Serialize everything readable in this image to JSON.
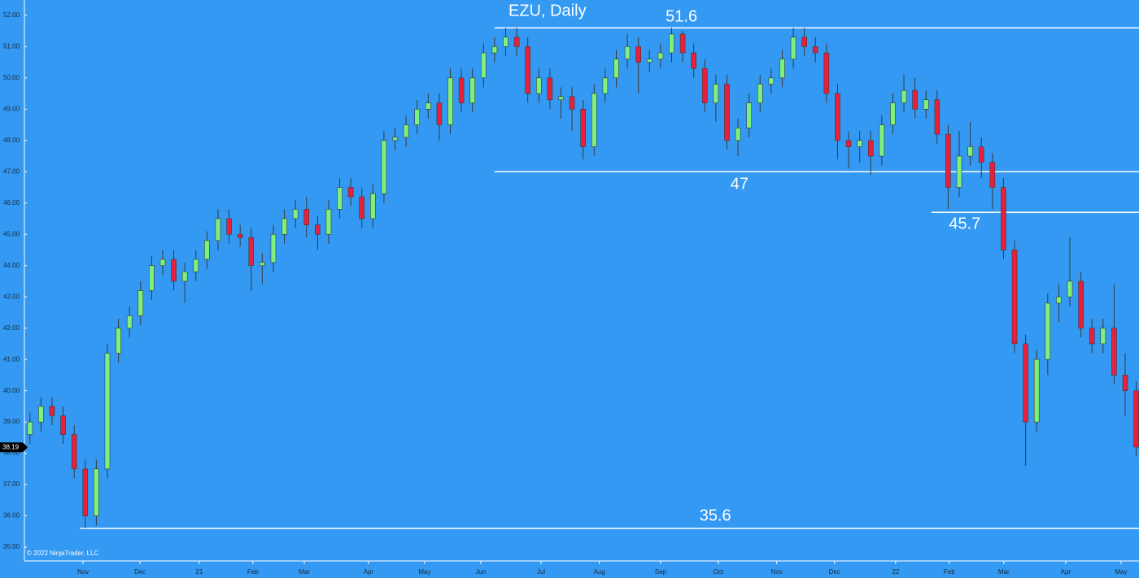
{
  "chart_data": {
    "type": "candlestick",
    "title": "EZU, Daily",
    "footnote": "© 2022 NinjaTrader, LLC",
    "last_price": 38.19,
    "up_color": "#7ef07e",
    "down_color": "#e8203c",
    "wick_color": "#3a3a3a",
    "xlim": [
      0,
      403
    ],
    "ylim": [
      34.56,
      52.49
    ],
    "yticks": [
      {
        "value": 35,
        "label": "35.00"
      },
      {
        "value": 36,
        "label": "36.00"
      },
      {
        "value": 37,
        "label": "37.00"
      },
      {
        "value": 38,
        "label": "38.00"
      },
      {
        "value": 39,
        "label": "39.00"
      },
      {
        "value": 40,
        "label": "40.00"
      },
      {
        "value": 41,
        "label": "41.00"
      },
      {
        "value": 42,
        "label": "42.00"
      },
      {
        "value": 43,
        "label": "43.00"
      },
      {
        "value": 44,
        "label": "44.00"
      },
      {
        "value": 45,
        "label": "45.00"
      },
      {
        "value": 46,
        "label": "46.00"
      },
      {
        "value": 47,
        "label": "47.00"
      },
      {
        "value": 48,
        "label": "48.00"
      },
      {
        "value": 49,
        "label": "49.00"
      },
      {
        "value": 50,
        "label": "50.00"
      },
      {
        "value": 51,
        "label": "51.00"
      },
      {
        "value": 52,
        "label": "52.00"
      }
    ],
    "xticks": [
      {
        "value": 21.2,
        "label": "Nov"
      },
      {
        "value": 41.8,
        "label": "Dec"
      },
      {
        "value": 63.2,
        "label": "21"
      },
      {
        "value": 82.6,
        "label": "Feb"
      },
      {
        "value": 101.2,
        "label": "Mar"
      },
      {
        "value": 124.4,
        "label": "Apr"
      },
      {
        "value": 144.7,
        "label": "May"
      },
      {
        "value": 165,
        "label": "Jun"
      },
      {
        "value": 186.8,
        "label": "Jul"
      },
      {
        "value": 207.9,
        "label": "Aug"
      },
      {
        "value": 230,
        "label": "Sep"
      },
      {
        "value": 250.9,
        "label": "Oct"
      },
      {
        "value": 272,
        "label": "Nov"
      },
      {
        "value": 292.9,
        "label": "Dec"
      },
      {
        "value": 315,
        "label": "22"
      },
      {
        "value": 334.4,
        "label": "Feb"
      },
      {
        "value": 354.1,
        "label": "Mar"
      },
      {
        "value": 376.5,
        "label": "Apr"
      },
      {
        "value": 396.5,
        "label": "May"
      }
    ],
    "levels": [
      {
        "value": 51.6,
        "start": 170
      },
      {
        "value": 47,
        "start": 170
      },
      {
        "value": 45.7,
        "start": 328
      },
      {
        "value": 35.6,
        "start": 20
      }
    ],
    "x": [
      2,
      6,
      10,
      14,
      18,
      22,
      26,
      30,
      34,
      38,
      42,
      46,
      50,
      54,
      58,
      62,
      66,
      70,
      74,
      78,
      82,
      86,
      90,
      94,
      98,
      102,
      106,
      110,
      114,
      118,
      122,
      126,
      130,
      134,
      138,
      142,
      146,
      150,
      154,
      158,
      162,
      166,
      170,
      174,
      178,
      182,
      186,
      190,
      194,
      198,
      202,
      206,
      210,
      214,
      218,
      222,
      226,
      230,
      234,
      238,
      242,
      246,
      250,
      254,
      258,
      262,
      266,
      270,
      274,
      278,
      282,
      286,
      290,
      294,
      298,
      302,
      306,
      310,
      314,
      318,
      322,
      326,
      330,
      334,
      338,
      342,
      346,
      350,
      354,
      358,
      362,
      366,
      370,
      374,
      378,
      382,
      386,
      390,
      394,
      398,
      402
    ],
    "open": [
      38.6,
      39.0,
      39.5,
      39.2,
      38.6,
      37.5,
      36.0,
      37.5,
      41.2,
      42.0,
      42.4,
      43.2,
      44.0,
      44.2,
      43.5,
      43.8,
      44.2,
      44.8,
      45.5,
      45.0,
      44.9,
      44.0,
      44.1,
      45.0,
      45.5,
      45.8,
      45.3,
      45.0,
      45.8,
      46.5,
      46.2,
      45.5,
      46.3,
      48.0,
      48.1,
      48.5,
      49.0,
      49.2,
      48.5,
      50.0,
      49.2,
      50.0,
      50.8,
      51.0,
      51.3,
      51.0,
      49.5,
      50.0,
      49.3,
      49.4,
      49.0,
      47.8,
      49.5,
      50.0,
      50.6,
      51.0,
      50.5,
      50.6,
      50.8,
      51.4,
      50.8,
      50.3,
      49.2,
      49.8,
      48.0,
      48.4,
      49.2,
      49.8,
      50.0,
      50.6,
      51.3,
      51.0,
      50.8,
      49.5,
      48.0,
      47.8,
      48.0,
      47.5,
      48.5,
      49.2,
      49.6,
      49.0,
      49.3,
      48.2,
      46.5,
      47.5,
      47.8,
      47.3,
      46.5,
      44.5,
      41.5,
      39.0,
      41.0,
      42.8,
      43.0,
      43.5,
      42.0,
      41.5,
      42.0,
      40.5,
      40.0
    ],
    "high": [
      39.3,
      39.8,
      39.8,
      39.5,
      38.9,
      37.8,
      37.8,
      41.5,
      42.3,
      42.7,
      43.5,
      44.3,
      44.5,
      44.5,
      44.1,
      44.5,
      45.1,
      45.8,
      45.8,
      45.3,
      45.2,
      44.4,
      45.3,
      45.8,
      46.1,
      46.2,
      45.6,
      46.1,
      46.8,
      46.8,
      46.5,
      46.6,
      48.3,
      48.4,
      48.8,
      49.3,
      49.5,
      49.5,
      50.3,
      50.3,
      50.3,
      51.1,
      51.3,
      51.6,
      51.6,
      51.3,
      50.3,
      50.3,
      49.7,
      49.7,
      49.3,
      49.8,
      50.3,
      50.9,
      51.4,
      51.3,
      50.9,
      51.1,
      51.6,
      51.5,
      51.1,
      50.6,
      50.1,
      50.1,
      48.7,
      49.5,
      50.1,
      50.3,
      50.9,
      51.6,
      51.6,
      51.3,
      51.1,
      49.8,
      48.3,
      48.3,
      48.3,
      48.8,
      49.5,
      50.1,
      50.0,
      49.6,
      49.6,
      48.5,
      48.3,
      48.6,
      48.1,
      47.6,
      46.8,
      44.8,
      41.8,
      41.3,
      43.1,
      43.4,
      44.9,
      43.8,
      42.3,
      42.3,
      43.4,
      41.2,
      40.3
    ],
    "low": [
      38.3,
      38.7,
      38.9,
      38.3,
      37.2,
      35.6,
      35.7,
      37.2,
      40.9,
      41.7,
      42.1,
      42.9,
      43.7,
      43.2,
      42.8,
      43.5,
      43.9,
      44.5,
      44.7,
      44.6,
      43.2,
      43.4,
      43.8,
      44.7,
      45.2,
      44.9,
      44.5,
      44.7,
      45.5,
      45.9,
      45.2,
      45.2,
      46.0,
      47.7,
      47.8,
      48.2,
      48.7,
      48.0,
      48.2,
      48.9,
      48.9,
      49.7,
      50.5,
      50.7,
      50.7,
      49.2,
      49.2,
      49.0,
      48.7,
      48.3,
      47.4,
      47.5,
      49.2,
      49.7,
      50.3,
      49.5,
      50.2,
      50.3,
      50.5,
      50.5,
      50.0,
      48.9,
      48.6,
      47.7,
      47.5,
      48.1,
      48.9,
      49.5,
      49.7,
      50.3,
      50.7,
      50.5,
      49.2,
      47.4,
      47.1,
      47.3,
      46.9,
      47.2,
      48.2,
      48.9,
      48.7,
      48.7,
      47.9,
      45.8,
      46.2,
      47.2,
      46.8,
      45.8,
      44.2,
      41.2,
      37.6,
      38.7,
      40.5,
      42.2,
      42.7,
      41.7,
      41.2,
      41.2,
      40.2,
      39.2,
      37.9
    ],
    "close": [
      39.0,
      39.5,
      39.2,
      38.6,
      37.5,
      36.0,
      37.5,
      41.2,
      42.0,
      42.4,
      43.2,
      44.0,
      44.2,
      43.5,
      43.8,
      44.2,
      44.8,
      45.5,
      45.0,
      44.9,
      44.0,
      44.1,
      45.0,
      45.5,
      45.8,
      45.3,
      45.0,
      45.8,
      46.5,
      46.2,
      45.5,
      46.3,
      48.0,
      48.1,
      48.5,
      49.0,
      49.2,
      48.5,
      50.0,
      49.2,
      50.0,
      50.8,
      51.0,
      51.3,
      51.0,
      49.5,
      50.0,
      49.3,
      49.4,
      49.0,
      47.8,
      49.5,
      50.0,
      50.6,
      51.0,
      50.5,
      50.6,
      50.8,
      51.4,
      50.8,
      50.3,
      49.2,
      49.8,
      48.0,
      48.4,
      49.2,
      49.8,
      50.0,
      50.6,
      51.3,
      51.0,
      50.8,
      49.5,
      48.0,
      47.8,
      48.0,
      47.5,
      48.5,
      49.2,
      49.6,
      49.0,
      49.3,
      48.2,
      46.5,
      47.5,
      47.8,
      47.3,
      46.5,
      44.5,
      41.5,
      39.0,
      41.0,
      42.8,
      43.0,
      43.5,
      42.0,
      41.5,
      42.0,
      40.5,
      40.0,
      38.2
    ]
  }
}
